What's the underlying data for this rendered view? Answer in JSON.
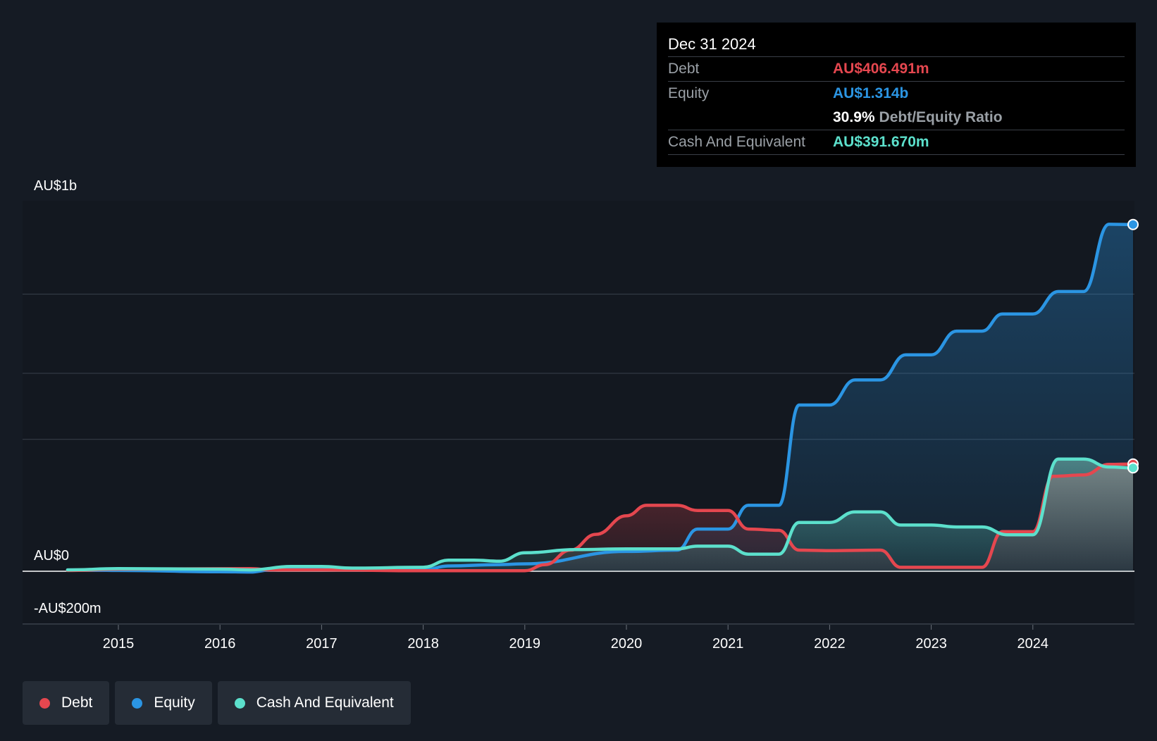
{
  "chart_data": {
    "type": "area",
    "x_ticks": [
      "2015",
      "2016",
      "2017",
      "2018",
      "2019",
      "2020",
      "2021",
      "2022",
      "2023",
      "2024"
    ],
    "y_axis_labels": [
      "AU$1b",
      "AU$0",
      "-AU$200m"
    ],
    "ylim_millions": [
      -200,
      1400
    ],
    "grid": true,
    "legend_position": "bottom-left",
    "series": [
      {
        "name": "Debt",
        "color": "#e5474f",
        "points": [
          [
            2014.5,
            3
          ],
          [
            2015.0,
            8
          ],
          [
            2016.3,
            10
          ],
          [
            2016.5,
            5
          ],
          [
            2017.0,
            5
          ],
          [
            2018.0,
            2
          ],
          [
            2019.0,
            2
          ],
          [
            2019.2,
            25
          ],
          [
            2019.45,
            80
          ],
          [
            2019.7,
            140
          ],
          [
            2020.0,
            210
          ],
          [
            2020.2,
            250
          ],
          [
            2020.5,
            250
          ],
          [
            2020.7,
            230
          ],
          [
            2021.0,
            230
          ],
          [
            2021.2,
            160
          ],
          [
            2021.5,
            155
          ],
          [
            2021.7,
            80
          ],
          [
            2022.0,
            78
          ],
          [
            2022.5,
            80
          ],
          [
            2022.7,
            15
          ],
          [
            2023.0,
            15
          ],
          [
            2023.5,
            15
          ],
          [
            2023.7,
            150
          ],
          [
            2024.0,
            150
          ],
          [
            2024.2,
            360
          ],
          [
            2024.5,
            365
          ],
          [
            2024.75,
            405
          ],
          [
            2025.0,
            406.491
          ]
        ]
      },
      {
        "name": "Equity",
        "color": "#2b95e3",
        "points": [
          [
            2014.5,
            5
          ],
          [
            2015.0,
            3
          ],
          [
            2016.0,
            -2
          ],
          [
            2016.3,
            -3
          ],
          [
            2016.5,
            5
          ],
          [
            2016.75,
            10
          ],
          [
            2017.0,
            10
          ],
          [
            2017.3,
            5
          ],
          [
            2018.0,
            5
          ],
          [
            2018.25,
            20
          ],
          [
            2018.75,
            25
          ],
          [
            2019.0,
            28
          ],
          [
            2020.0,
            75
          ],
          [
            2020.5,
            80
          ],
          [
            2020.7,
            160
          ],
          [
            2021.0,
            160
          ],
          [
            2021.2,
            250
          ],
          [
            2021.5,
            250
          ],
          [
            2021.7,
            630
          ],
          [
            2022.0,
            630
          ],
          [
            2022.25,
            725
          ],
          [
            2022.5,
            725
          ],
          [
            2022.75,
            820
          ],
          [
            2023.0,
            820
          ],
          [
            2023.25,
            910
          ],
          [
            2023.5,
            910
          ],
          [
            2023.7,
            975
          ],
          [
            2024.0,
            975
          ],
          [
            2024.25,
            1060
          ],
          [
            2024.5,
            1060
          ],
          [
            2024.75,
            1315
          ],
          [
            2025.0,
            1314
          ]
        ]
      },
      {
        "name": "Cash And Equivalent",
        "color": "#5ce0cc",
        "points": [
          [
            2014.5,
            5
          ],
          [
            2015.0,
            10
          ],
          [
            2016.0,
            8
          ],
          [
            2016.3,
            5
          ],
          [
            2016.7,
            18
          ],
          [
            2017.0,
            18
          ],
          [
            2017.3,
            12
          ],
          [
            2018.0,
            15
          ],
          [
            2018.25,
            42
          ],
          [
            2018.5,
            42
          ],
          [
            2018.75,
            38
          ],
          [
            2019.0,
            70
          ],
          [
            2019.5,
            82
          ],
          [
            2020.0,
            85
          ],
          [
            2020.5,
            85
          ],
          [
            2020.7,
            95
          ],
          [
            2021.0,
            95
          ],
          [
            2021.2,
            65
          ],
          [
            2021.5,
            65
          ],
          [
            2021.7,
            185
          ],
          [
            2022.0,
            185
          ],
          [
            2022.25,
            225
          ],
          [
            2022.5,
            225
          ],
          [
            2022.7,
            175
          ],
          [
            2023.0,
            175
          ],
          [
            2023.25,
            168
          ],
          [
            2023.5,
            168
          ],
          [
            2023.75,
            138
          ],
          [
            2024.0,
            138
          ],
          [
            2024.25,
            425
          ],
          [
            2024.5,
            425
          ],
          [
            2024.75,
            395
          ],
          [
            2025.0,
            391.67
          ]
        ]
      }
    ]
  },
  "tooltip": {
    "date": "Dec 31 2024",
    "debt_label": "Debt",
    "debt_value": "AU$406.491m",
    "equity_label": "Equity",
    "equity_value": "AU$1.314b",
    "ratio_value": "30.9%",
    "ratio_label": "Debt/Equity Ratio",
    "cash_label": "Cash And Equivalent",
    "cash_value": "AU$391.670m"
  },
  "legend": [
    {
      "label": "Debt",
      "color": "#e5474f"
    },
    {
      "label": "Equity",
      "color": "#2b95e3"
    },
    {
      "label": "Cash And Equivalent",
      "color": "#5ce0cc"
    }
  ]
}
